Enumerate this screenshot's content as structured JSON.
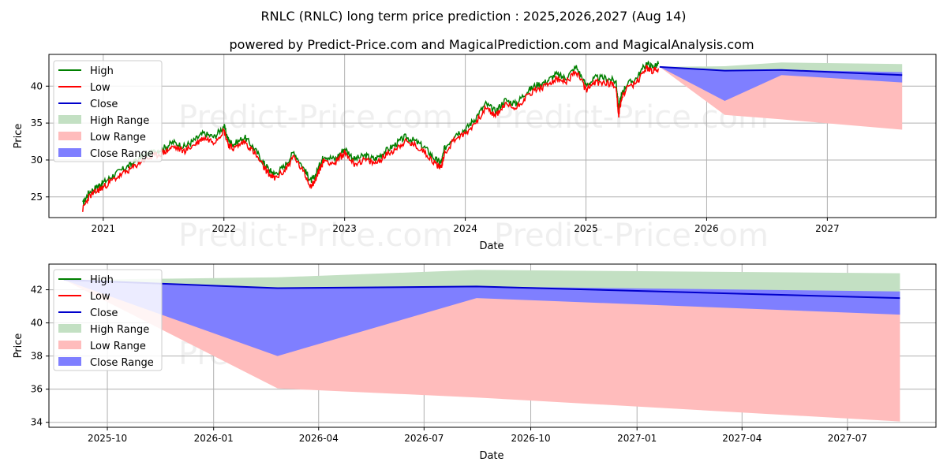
{
  "title": "RNLC (RNLC) long term price prediction : 2025,2026,2027 (Aug 14)",
  "subtitle": "powered by Predict-Price.com and MagicalPrediction.com and MagicalAnalysis.com",
  "watermark": "Predict-Price.com",
  "colors": {
    "high": "#008000",
    "low": "#ff0000",
    "close": "#0000cc",
    "high_range": "#c3e0c3",
    "low_range": "#ffbcbc",
    "close_range": "#7f7fff"
  },
  "chart_data": [
    {
      "type": "line",
      "title": "",
      "xlabel": "Date",
      "ylabel": "Price",
      "xlim": [
        2020.55,
        2027.9
      ],
      "ylim": [
        22.2,
        44.3
      ],
      "x_ticks": [
        2021,
        2022,
        2023,
        2024,
        2025,
        2026,
        2027
      ],
      "x_tick_labels": [
        "2021",
        "2022",
        "2023",
        "2024",
        "2025",
        "2026",
        "2027"
      ],
      "y_ticks": [
        25,
        30,
        35,
        40
      ],
      "grid": true,
      "legend_position": "top-left",
      "legend": [
        "High",
        "Low",
        "Close",
        "High Range",
        "Low Range",
        "Close Range"
      ],
      "history": {
        "x": [
          2020.83,
          2020.88,
          2020.95,
          2021.0,
          2021.08,
          2021.17,
          2021.25,
          2021.33,
          2021.42,
          2021.5,
          2021.58,
          2021.67,
          2021.75,
          2021.83,
          2021.92,
          2022.0,
          2022.04,
          2022.08,
          2022.17,
          2022.25,
          2022.33,
          2022.38,
          2022.42,
          2022.5,
          2022.58,
          2022.67,
          2022.72,
          2022.75,
          2022.8,
          2022.83,
          2022.92,
          2023.0,
          2023.08,
          2023.17,
          2023.25,
          2023.33,
          2023.42,
          2023.5,
          2023.58,
          2023.67,
          2023.75,
          2023.8,
          2023.83,
          2023.92,
          2024.0,
          2024.08,
          2024.17,
          2024.25,
          2024.33,
          2024.42,
          2024.5,
          2024.58,
          2024.67,
          2024.75,
          2024.83,
          2024.92,
          2025.0,
          2025.08,
          2025.17,
          2025.25,
          2025.27,
          2025.29,
          2025.33,
          2025.42,
          2025.5,
          2025.55,
          2025.6
        ],
        "low": [
          23.3,
          25.0,
          25.8,
          26.3,
          27.3,
          28.2,
          29.0,
          30.0,
          30.5,
          31.0,
          31.8,
          31.2,
          32.0,
          33.0,
          32.5,
          34.0,
          32.0,
          31.5,
          32.5,
          31.0,
          29.0,
          28.0,
          27.5,
          28.5,
          30.5,
          28.0,
          26.5,
          27.0,
          29.0,
          30.0,
          29.5,
          31.0,
          29.5,
          30.0,
          29.5,
          30.5,
          31.5,
          32.5,
          32.0,
          31.0,
          29.5,
          29.0,
          31.0,
          33.0,
          33.5,
          35.0,
          37.0,
          36.0,
          37.5,
          37.0,
          38.5,
          39.5,
          40.0,
          41.0,
          40.5,
          42.0,
          39.5,
          40.5,
          40.5,
          40.0,
          36.0,
          38.0,
          39.5,
          40.5,
          42.5,
          42.0,
          42.4
        ],
        "high": [
          24.0,
          25.6,
          26.4,
          26.9,
          27.9,
          28.8,
          29.6,
          30.6,
          31.1,
          31.6,
          32.4,
          31.8,
          32.6,
          33.6,
          33.1,
          34.6,
          32.6,
          32.1,
          33.1,
          31.6,
          29.6,
          28.6,
          28.1,
          29.1,
          31.1,
          28.6,
          27.2,
          27.6,
          29.6,
          30.6,
          30.1,
          31.6,
          30.1,
          30.6,
          30.1,
          31.1,
          32.1,
          33.1,
          32.6,
          31.6,
          30.1,
          29.6,
          31.6,
          33.6,
          34.1,
          35.6,
          37.6,
          36.6,
          38.1,
          37.6,
          39.1,
          40.1,
          40.6,
          41.6,
          41.1,
          42.6,
          40.1,
          41.1,
          41.1,
          40.6,
          37.0,
          38.6,
          40.1,
          41.1,
          43.1,
          42.6,
          43.0
        ]
      },
      "forecast": {
        "x": [
          2025.61,
          2026.15,
          2026.62,
          2027.62
        ],
        "close": [
          42.6,
          42.1,
          42.2,
          41.5
        ],
        "high_range_upper": [
          42.6,
          42.7,
          43.2,
          43.0
        ],
        "low_range_lower": [
          42.6,
          36.1,
          35.5,
          34.1
        ],
        "close_range_upper": [
          42.6,
          42.1,
          42.2,
          41.9
        ],
        "close_range_lower": [
          42.6,
          38.0,
          41.5,
          40.5
        ]
      }
    },
    {
      "type": "line",
      "title": "",
      "xlabel": "Date",
      "ylabel": "Price",
      "xlim": [
        2025.61,
        2027.705
      ],
      "ylim": [
        33.7,
        43.55
      ],
      "x_ticks": [
        2025.748,
        2025.999,
        2026.247,
        2026.496,
        2026.748,
        2026.999,
        2027.247,
        2027.496
      ],
      "x_tick_labels": [
        "2025-10",
        "2026-01",
        "2026-04",
        "2026-07",
        "2026-10",
        "2027-01",
        "2027-04",
        "2027-07"
      ],
      "y_ticks": [
        34,
        36,
        38,
        40,
        42
      ],
      "grid": true,
      "legend_position": "top-left",
      "legend": [
        "High",
        "Low",
        "Close",
        "High Range",
        "Low Range",
        "Close Range"
      ],
      "forecast": {
        "x": [
          2025.645,
          2026.15,
          2026.62,
          2027.62
        ],
        "close": [
          42.6,
          42.1,
          42.2,
          41.5
        ],
        "high_range_upper": [
          42.6,
          42.75,
          43.2,
          43.0
        ],
        "low_range_lower": [
          42.6,
          36.05,
          35.5,
          34.05
        ],
        "close_range_upper": [
          42.6,
          42.1,
          42.2,
          41.9
        ],
        "close_range_lower": [
          42.6,
          38.0,
          41.5,
          40.5
        ]
      }
    }
  ]
}
